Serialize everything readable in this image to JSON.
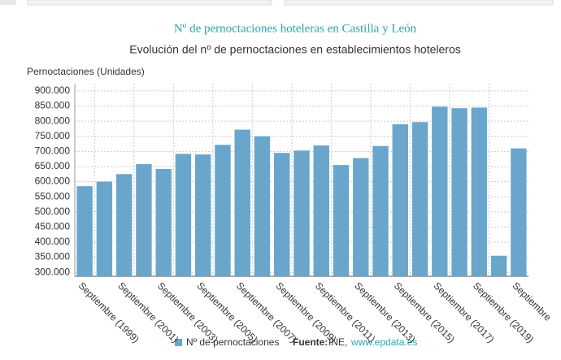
{
  "chart_data": {
    "type": "bar",
    "title": "Nº de pernoctaciones hoteleras en Castilla y León",
    "subtitle": "Evolución del nº de pernoctaciones en establecimientos hoteleros",
    "y_label": "Pernoctaciones (Unidades)",
    "categories": [
      "Septiembre (1999)",
      null,
      "Septiembre (2001)",
      null,
      "Septiembre (2003)",
      null,
      "Septiembre (2005)",
      null,
      "Septiembre (2007)",
      null,
      "Septiembre (2009)",
      null,
      "Septiembre (2011)",
      null,
      "Septiembre (2013)",
      null,
      "Septiembre (2015)",
      null,
      "Septiembre (2017)",
      null,
      "Septiembre (2019)",
      null,
      "Septiembre"
    ],
    "series": [
      {
        "name": "Nº de pernoctaciones",
        "color": "#6aa6cc",
        "values": [
          585000,
          600000,
          625000,
          658000,
          642000,
          692000,
          690000,
          722000,
          772000,
          750000,
          695000,
          703000,
          720000,
          655000,
          678000,
          718000,
          790000,
          797000,
          848000,
          843000,
          845000,
          355000,
          710000
        ]
      }
    ],
    "ylim": [
      287000,
      924000
    ],
    "yticks": [
      {
        "value": 300000,
        "label": "300.000"
      },
      {
        "value": 350000,
        "label": "350.000"
      },
      {
        "value": 400000,
        "label": "400.000"
      },
      {
        "value": 450000,
        "label": "450.000"
      },
      {
        "value": 500000,
        "label": "500.000"
      },
      {
        "value": 550000,
        "label": "550.000"
      },
      {
        "value": 600000,
        "label": "600.000"
      },
      {
        "value": 650000,
        "label": "650.000"
      },
      {
        "value": 700000,
        "label": "700.000"
      },
      {
        "value": 750000,
        "label": "750.000"
      },
      {
        "value": 800000,
        "label": "800.000"
      },
      {
        "value": 850000,
        "label": "850.000"
      },
      {
        "value": 900000,
        "label": "900.000"
      }
    ],
    "grid": true,
    "source_label": "Fuente:",
    "source": "INE,",
    "source_link": "www.epdata.es"
  }
}
